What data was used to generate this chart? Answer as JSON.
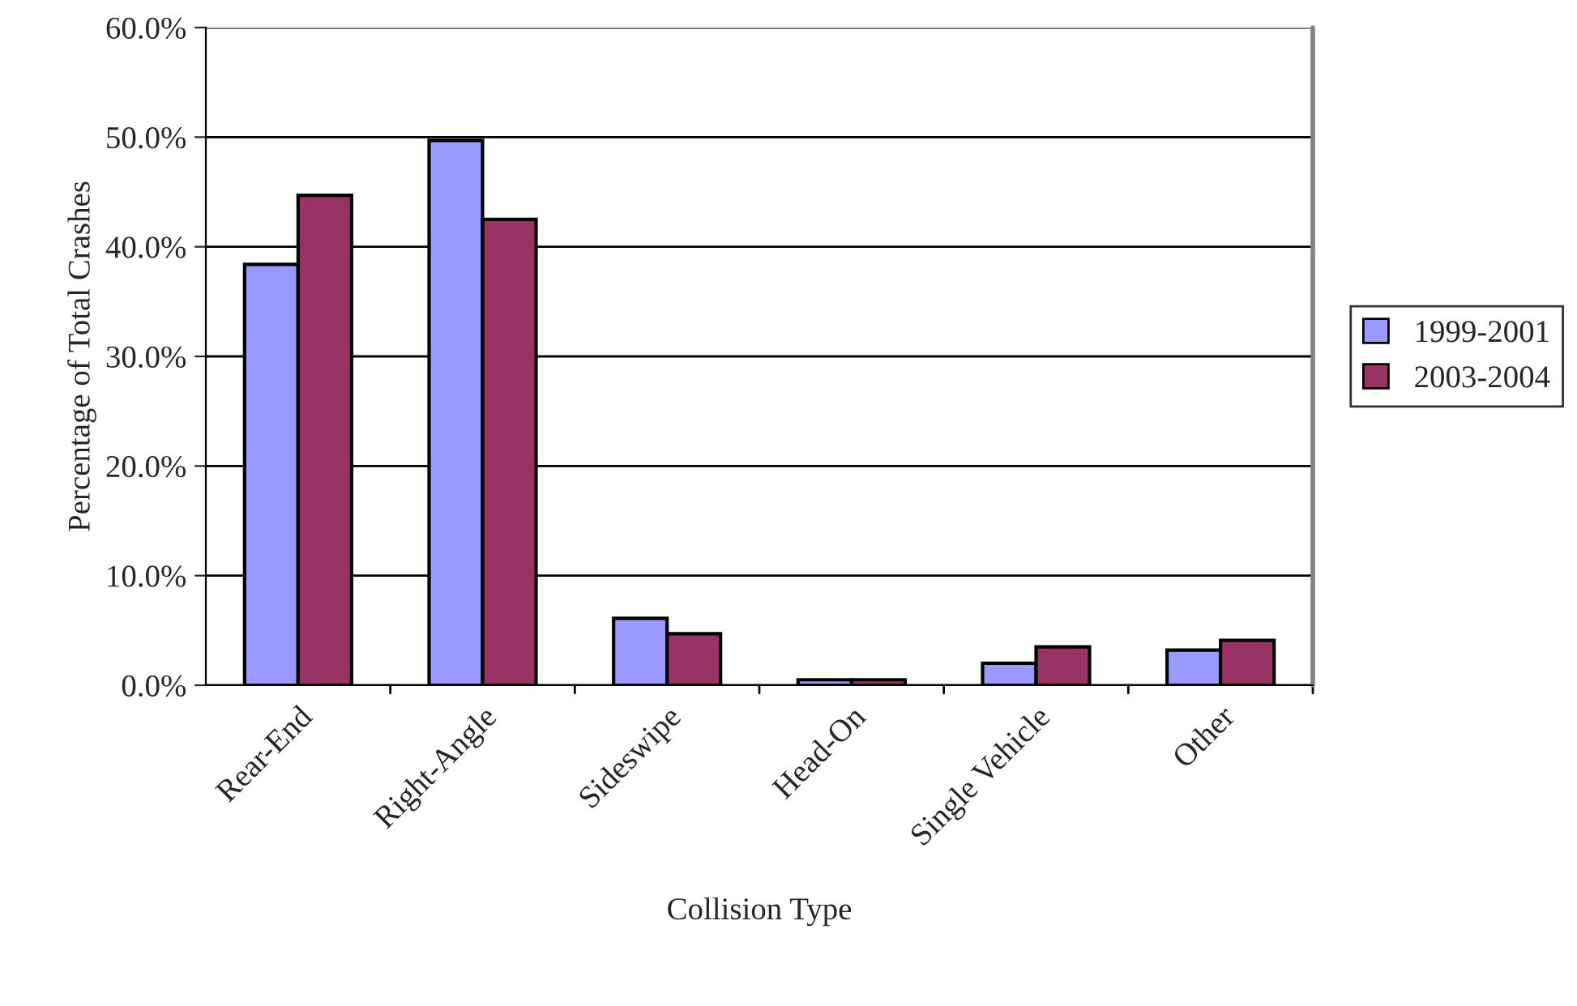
{
  "chart_data": {
    "type": "bar",
    "xlabel": "Collision Type",
    "ylabel": "Percentage of Total Crashes",
    "categories": [
      "Rear-End",
      "Right-Angle",
      "Sideswipe",
      "Head-On",
      "Single Vehicle",
      "Other"
    ],
    "series": [
      {
        "name": "1999-2001",
        "color": "#9999ff",
        "values": [
          38.4,
          49.7,
          6.1,
          0.5,
          2.0,
          3.2
        ]
      },
      {
        "name": "2003-2004",
        "color": "#993366",
        "values": [
          44.7,
          42.5,
          4.7,
          0.5,
          3.5,
          4.1
        ]
      }
    ],
    "ylim": [
      0,
      60
    ],
    "yticks": [
      {
        "value": 0,
        "label": "0.0%"
      },
      {
        "value": 10,
        "label": "10.0%"
      },
      {
        "value": 20,
        "label": "20.0%"
      },
      {
        "value": 30,
        "label": "30.0%"
      },
      {
        "value": 40,
        "label": "40.0%"
      },
      {
        "value": 50,
        "label": "50.0%"
      },
      {
        "value": 60,
        "label": "60.0%"
      }
    ],
    "grid": "y",
    "legend": "right"
  }
}
